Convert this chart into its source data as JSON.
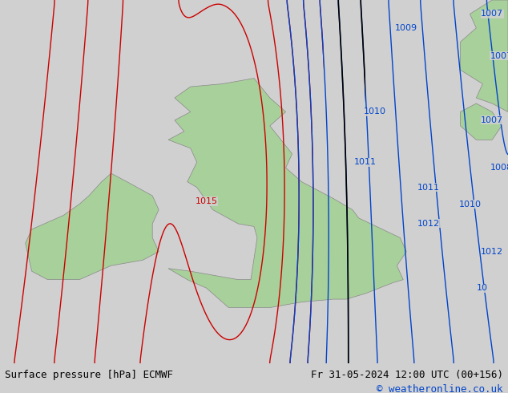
{
  "title_left": "Surface pressure [hPa] ECMWF",
  "title_right": "Fr 31-05-2024 12:00 UTC (00+156)",
  "copyright": "© weatheronline.co.uk",
  "bg_color": "#d0d0d0",
  "land_color": "#a8d09a",
  "bottom_bar_color": "#e0e0e0",
  "red_isobar_color": "#cc0000",
  "black_isobar_color": "#000000",
  "blue_isobar_color": "#0044cc",
  "label_fontsize": 8,
  "footer_fontsize": 9,
  "isobar_linewidth": 1.0,
  "xlim": [
    -11.0,
    5.0
  ],
  "ylim": [
    48.5,
    61.5
  ],
  "grid_nx": 400,
  "grid_ny": 350
}
